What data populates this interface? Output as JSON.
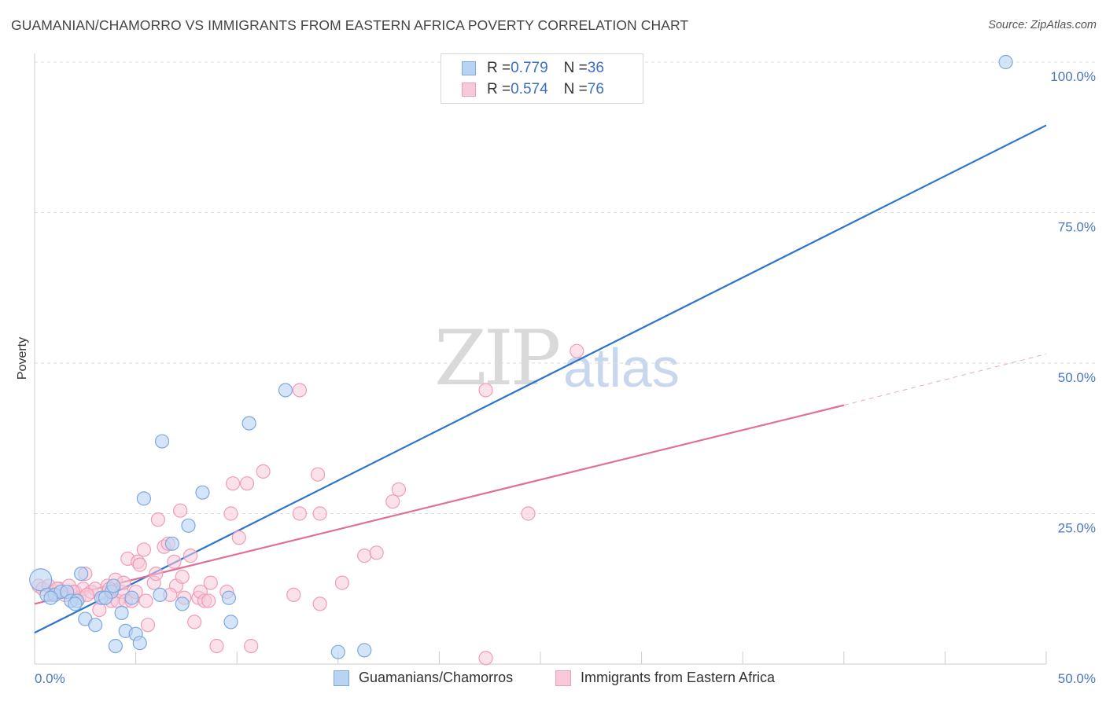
{
  "title": "GUAMANIAN/CHAMORRO VS IMMIGRANTS FROM EASTERN AFRICA POVERTY CORRELATION CHART",
  "source": "Source: ZipAtlas.com",
  "watermark": {
    "zip": "ZIP",
    "atlas": "atlas"
  },
  "colors": {
    "blue_fill": "#b9d3f3",
    "blue_stroke": "#7ea8e0",
    "blue_line": "#2f74cc",
    "pink_fill": "#f8c9d8",
    "pink_stroke": "#ee9db8",
    "pink_line": "#e0709a",
    "grid": "#dddddd",
    "tick_text": "#4a78c4"
  },
  "legend": {
    "rows": [
      {
        "r_label": "R = ",
        "r_value": "0.779",
        "n_label": "N = ",
        "n_value": "36"
      },
      {
        "r_label": "R = ",
        "r_value": "0.574",
        "n_label": "N = ",
        "n_value": "76"
      }
    ]
  },
  "bottom_legend": [
    "Guamanians/Chamorros",
    "Immigrants from Eastern Africa"
  ],
  "chart_data": {
    "type": "scatter",
    "xlabel": "",
    "ylabel": "Poverty",
    "xlim": [
      0,
      50
    ],
    "ylim": [
      0,
      100
    ],
    "x_tick_labels": [
      "0.0%",
      "50.0%"
    ],
    "y_tick_labels": [
      "100.0%",
      "75.0%",
      "50.0%",
      "25.0%"
    ],
    "y_ticks": [
      100,
      75,
      50,
      25
    ],
    "series": [
      {
        "name": "Guamanians/Chamorros",
        "R": 0.779,
        "N": 36,
        "trend": {
          "x0": 0,
          "y0": 5.2,
          "x1": 50,
          "y1": 89.5
        },
        "points": [
          [
            0.3,
            14
          ],
          [
            0.6,
            11.5
          ],
          [
            1,
            11.5
          ],
          [
            1.3,
            12
          ],
          [
            1.6,
            12
          ],
          [
            1.8,
            10.5
          ],
          [
            2.1,
            10.5
          ],
          [
            2.3,
            15
          ],
          [
            2.5,
            7.5
          ],
          [
            3,
            6.5
          ],
          [
            3.3,
            11
          ],
          [
            3.8,
            12
          ],
          [
            3.9,
            13
          ],
          [
            4.0,
            3
          ],
          [
            4.3,
            8.5
          ],
          [
            4.5,
            5.5
          ],
          [
            4.8,
            11
          ],
          [
            5,
            5
          ],
          [
            5.2,
            3.5
          ],
          [
            5.4,
            27.5
          ],
          [
            6.2,
            11.5
          ],
          [
            6.3,
            37
          ],
          [
            6.8,
            20
          ],
          [
            7.3,
            10
          ],
          [
            7.6,
            23
          ],
          [
            8.3,
            28.5
          ],
          [
            9.6,
            11
          ],
          [
            9.7,
            7
          ],
          [
            10.6,
            40
          ],
          [
            12.4,
            45.5
          ],
          [
            15,
            2
          ],
          [
            16.3,
            2.3
          ],
          [
            48,
            100
          ],
          [
            0.8,
            11
          ],
          [
            2.0,
            10
          ],
          [
            3.5,
            11
          ]
        ]
      },
      {
        "name": "Immigrants from Eastern Africa",
        "R": 0.574,
        "N": 76,
        "trend": {
          "x0": 0,
          "y0": 10,
          "x1": 40,
          "y1": 43,
          "dash_x1": 50,
          "dash_y1": 51.5
        },
        "points": [
          [
            0.2,
            13
          ],
          [
            0.4,
            12.5
          ],
          [
            0.7,
            13
          ],
          [
            1,
            12
          ],
          [
            1.2,
            12.5
          ],
          [
            1.5,
            11.5
          ],
          [
            1.7,
            13
          ],
          [
            2.0,
            12
          ],
          [
            2.2,
            11
          ],
          [
            2.4,
            12.5
          ],
          [
            2.5,
            15
          ],
          [
            2.8,
            12
          ],
          [
            3.0,
            12.5
          ],
          [
            3.2,
            9
          ],
          [
            3.4,
            11
          ],
          [
            3.6,
            13
          ],
          [
            3.8,
            10.5
          ],
          [
            4.0,
            14
          ],
          [
            4.1,
            10.5
          ],
          [
            4.3,
            12
          ],
          [
            4.4,
            13.5
          ],
          [
            4.5,
            10.5
          ],
          [
            4.6,
            17.5
          ],
          [
            4.8,
            10.5
          ],
          [
            5.0,
            12
          ],
          [
            5.1,
            17
          ],
          [
            5.2,
            16.5
          ],
          [
            5.4,
            19
          ],
          [
            5.5,
            10.5
          ],
          [
            5.6,
            6.5
          ],
          [
            5.9,
            13.5
          ],
          [
            6.0,
            15
          ],
          [
            6.1,
            24
          ],
          [
            6.4,
            19.5
          ],
          [
            6.6,
            20
          ],
          [
            6.9,
            17
          ],
          [
            7.0,
            13
          ],
          [
            7.2,
            25.5
          ],
          [
            7.3,
            14.5
          ],
          [
            7.4,
            11
          ],
          [
            7.7,
            18
          ],
          [
            7.9,
            7
          ],
          [
            8.1,
            11
          ],
          [
            8.2,
            12
          ],
          [
            8.4,
            10.5
          ],
          [
            8.6,
            10.5
          ],
          [
            8.7,
            13.5
          ],
          [
            9.0,
            3
          ],
          [
            9.5,
            12
          ],
          [
            9.7,
            25
          ],
          [
            9.8,
            30
          ],
          [
            10.1,
            21
          ],
          [
            10.5,
            30
          ],
          [
            10.7,
            3
          ],
          [
            11.3,
            32
          ],
          [
            12.8,
            11.5
          ],
          [
            13.1,
            45.5
          ],
          [
            13.1,
            25
          ],
          [
            14.0,
            31.5
          ],
          [
            14.1,
            25
          ],
          [
            14.1,
            10
          ],
          [
            15.2,
            13.5
          ],
          [
            16.3,
            18
          ],
          [
            16.9,
            18.5
          ],
          [
            17.7,
            27
          ],
          [
            18.0,
            29
          ],
          [
            22.3,
            45.5
          ],
          [
            24.4,
            25
          ],
          [
            26.8,
            52
          ],
          [
            22.3,
            1
          ],
          [
            0.9,
            11.5
          ],
          [
            1.9,
            12
          ],
          [
            3.7,
            12.5
          ],
          [
            6.7,
            11.5
          ],
          [
            1.1,
            12.5
          ],
          [
            2.6,
            11.5
          ]
        ]
      }
    ]
  }
}
